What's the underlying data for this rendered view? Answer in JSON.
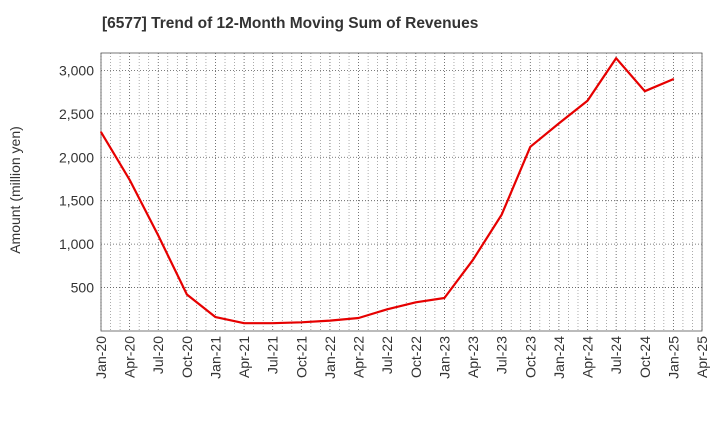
{
  "chart_data": {
    "type": "line",
    "title": "[6577]  Trend of 12-Month Moving Sum of Revenues",
    "xlabel": "",
    "ylabel": "Amount (million yen)",
    "ylim": [
      0,
      3200
    ],
    "yticks": [
      500,
      1000,
      1500,
      2000,
      2500,
      3000
    ],
    "ytick_labels": [
      "500",
      "1,000",
      "1,500",
      "2,000",
      "2,500",
      "3,000"
    ],
    "xticks": [
      "Jan-20",
      "Apr-20",
      "Jul-20",
      "Oct-20",
      "Jan-21",
      "Apr-21",
      "Jul-21",
      "Oct-21",
      "Jan-22",
      "Apr-22",
      "Jul-22",
      "Oct-22",
      "Jan-23",
      "Apr-23",
      "Jul-23",
      "Oct-23",
      "Jan-24",
      "Apr-24",
      "Jul-24",
      "Oct-24",
      "Jan-25",
      "Apr-25"
    ],
    "grid": true,
    "series": [
      {
        "color": "#e60000",
        "points": [
          {
            "x": "Jan-20",
            "y": 2290
          },
          {
            "x": "Apr-20",
            "y": 1740
          },
          {
            "x": "Jul-20",
            "y": 1100
          },
          {
            "x": "Oct-20",
            "y": 420
          },
          {
            "x": "Jan-21",
            "y": 160
          },
          {
            "x": "Apr-21",
            "y": 90
          },
          {
            "x": "Jul-21",
            "y": 90
          },
          {
            "x": "Oct-21",
            "y": 100
          },
          {
            "x": "Jan-22",
            "y": 120
          },
          {
            "x": "Apr-22",
            "y": 150
          },
          {
            "x": "Jul-22",
            "y": 250
          },
          {
            "x": "Oct-22",
            "y": 330
          },
          {
            "x": "Jan-23",
            "y": 380
          },
          {
            "x": "Apr-23",
            "y": 820
          },
          {
            "x": "Jul-23",
            "y": 1340
          },
          {
            "x": "Oct-23",
            "y": 2120
          },
          {
            "x": "Jan-24",
            "y": 2390
          },
          {
            "x": "Apr-24",
            "y": 2650
          },
          {
            "x": "Jul-24",
            "y": 3140
          },
          {
            "x": "Oct-24",
            "y": 2760
          },
          {
            "x": "Jan-25",
            "y": 2900
          }
        ]
      }
    ]
  }
}
